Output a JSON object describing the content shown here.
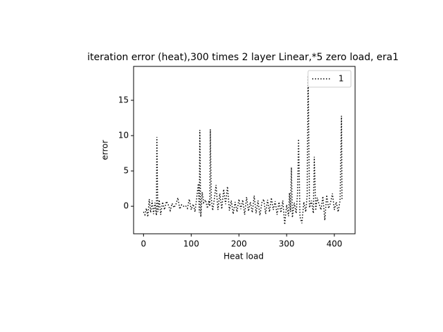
{
  "chart_data": {
    "type": "line",
    "title": "iteration error (heat),300 times 2 layer Linear,*5 zero load, era1",
    "xlabel": "Heat load",
    "ylabel": "error",
    "x": [
      0,
      3,
      6,
      9,
      12,
      15,
      18,
      21,
      24,
      27,
      28,
      30,
      33,
      36,
      40,
      44,
      48,
      52,
      56,
      60,
      64,
      68,
      72,
      76,
      80,
      84,
      88,
      92,
      96,
      100,
      104,
      108,
      112,
      115,
      117,
      118,
      120,
      123,
      126,
      130,
      134,
      137,
      139,
      140,
      142,
      145,
      148,
      152,
      156,
      160,
      164,
      168,
      172,
      176,
      180,
      184,
      188,
      192,
      196,
      200,
      204,
      208,
      212,
      216,
      220,
      224,
      228,
      232,
      236,
      240,
      244,
      248,
      252,
      256,
      260,
      264,
      268,
      272,
      276,
      280,
      284,
      288,
      292,
      296,
      300,
      304,
      306,
      308,
      310,
      312,
      316,
      320,
      323,
      325,
      328,
      332,
      336,
      340,
      343,
      345,
      348,
      352,
      356,
      358,
      361,
      364,
      368,
      372,
      376,
      380,
      384,
      388,
      392,
      396,
      400,
      404,
      408,
      412,
      415,
      416
    ],
    "series": [
      {
        "name": "1",
        "color": "#000000",
        "values": [
          -0.8,
          -1.2,
          -0.3,
          -1.5,
          1.0,
          -0.9,
          0.8,
          -1.1,
          0.5,
          -1.3,
          9.8,
          -0.8,
          0.9,
          -1.2,
          0.6,
          -0.5,
          0.7,
          0.2,
          -0.6,
          0.4,
          -0.2,
          0.3,
          1.2,
          -0.4,
          0.2,
          0.0,
          0.1,
          -0.3,
          1.0,
          -0.5,
          0.3,
          -0.8,
          1.5,
          3.2,
          -0.9,
          10.8,
          -1.5,
          2.0,
          0.5,
          0.9,
          -0.3,
          0.8,
          0.0,
          10.9,
          1.2,
          -0.6,
          0.8,
          3.0,
          -0.5,
          1.8,
          -0.4,
          2.4,
          0.3,
          2.8,
          -0.6,
          0.8,
          -1.1,
          0.6,
          -0.8,
          1.0,
          -0.4,
          0.9,
          -1.2,
          1.3,
          -0.7,
          0.6,
          -0.9,
          1.5,
          -1.0,
          0.8,
          -1.3,
          0.5,
          1.0,
          -1.1,
          0.9,
          -0.8,
          1.2,
          -0.5,
          0.7,
          -1.2,
          0.6,
          -0.9,
          0.8,
          -2.6,
          0.2,
          -1.4,
          1.9,
          -0.8,
          5.5,
          -1.6,
          0.5,
          -1.0,
          2.0,
          9.5,
          -1.5,
          -2.4,
          0.6,
          -0.8,
          1.5,
          18.5,
          -0.2,
          0.8,
          -1.0,
          7.0,
          -0.6,
          1.2,
          0.3,
          -0.5,
          1.4,
          -2.0,
          1.6,
          -0.3,
          0.5,
          1.8,
          -0.5,
          0.6,
          -0.8,
          0.8,
          12.8,
          1.0
        ]
      }
    ],
    "xlim": [
      -20.8,
      443.5
    ],
    "ylim": [
      -3.9,
      19.8
    ],
    "xticks": [
      0,
      100,
      200,
      300,
      400
    ],
    "yticks": [
      0,
      5,
      10,
      15
    ],
    "legend": "upper right"
  }
}
